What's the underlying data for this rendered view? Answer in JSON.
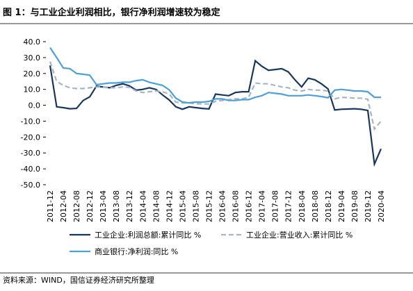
{
  "chart_data": {
    "type": "line",
    "title": "图 1：与工业企业利润相比，银行净利润增速较为稳定",
    "source": "资料来源：WIND，国信证券经济研究所整理",
    "categories": [
      "2011-12",
      null,
      "2012-04",
      null,
      "2012-08",
      null,
      "2012-12",
      null,
      "2013-04",
      null,
      "2013-08",
      null,
      "2013-12",
      null,
      "2014-04",
      null,
      "2014-08",
      null,
      "2014-12",
      null,
      "2015-04",
      null,
      "2015-08",
      null,
      "2015-12",
      null,
      "2016-04",
      null,
      "2016-08",
      null,
      "2016-12",
      null,
      "2017-04",
      null,
      "2017-08",
      null,
      "2017-12",
      null,
      "2018-04",
      null,
      "2018-08",
      null,
      "2018-12",
      null,
      "2019-04",
      null,
      "2019-08",
      null,
      "2019-12",
      null,
      "2020-04"
    ],
    "series": [
      {
        "name": "工业企业:利润总额:累计同比 %",
        "color": "#17375e",
        "dash": false,
        "values": [
          25,
          -1.0,
          -1.5,
          -2.2,
          -2.0,
          3,
          5.3,
          12,
          11.5,
          11,
          12.5,
          13.5,
          12.2,
          9.5,
          10,
          11,
          10,
          6.5,
          3.3,
          -1,
          -2.5,
          -1,
          -1.5,
          -2,
          -2.3,
          7.0,
          6.5,
          6,
          8,
          8.5,
          8.5,
          28,
          24.5,
          22,
          22.5,
          23,
          21,
          16,
          11.5,
          17,
          16,
          13.5,
          10.3,
          -3,
          -2.5,
          -2.4,
          -2.2,
          -2.5,
          -3.3,
          -37,
          -27.4
        ]
      },
      {
        "name": "工业企业:营业收入:累计同比 %",
        "color": "#a6b4c8",
        "dash": true,
        "values": [
          27.5,
          15,
          12.5,
          11,
          10.5,
          10.5,
          11,
          11.5,
          11.5,
          11,
          11,
          11.5,
          11.3,
          9,
          8,
          8.5,
          9,
          8.5,
          7,
          2,
          1.5,
          1.5,
          1,
          0.8,
          0.8,
          2.5,
          3,
          3.5,
          4,
          4,
          5,
          14,
          13.5,
          13.5,
          12.5,
          11.5,
          11,
          9.5,
          9,
          10,
          9.5,
          9.5,
          9,
          4,
          5,
          4.8,
          4.5,
          4.5,
          3.8,
          -15,
          -10
        ]
      },
      {
        "name": "商业银行:净利润:同比 %",
        "color": "#4a9fdc",
        "dash": false,
        "values": [
          36.3,
          30,
          23.5,
          23,
          20,
          19.5,
          18.9,
          13,
          13.5,
          14,
          14,
          14.5,
          14.5,
          15.5,
          16,
          14.5,
          13.5,
          12.5,
          9.7,
          4.5,
          2,
          1.5,
          2,
          2,
          2.4,
          4,
          4,
          3,
          3,
          3.5,
          3.5,
          5,
          6,
          8,
          7.5,
          7,
          6,
          6,
          6,
          6.5,
          6,
          5.5,
          4.7,
          9.5,
          10,
          9.5,
          9,
          9,
          8.5,
          5,
          5
        ]
      }
    ],
    "ylim": [
      -50,
      40
    ],
    "yticks": [
      {
        "value": 40,
        "label": "40.0"
      },
      {
        "value": 30,
        "label": "30.0"
      },
      {
        "value": 20,
        "label": "20.0"
      },
      {
        "value": 10,
        "label": "10.0"
      },
      {
        "value": 0,
        "label": "0.0"
      },
      {
        "value": -10,
        "label": "-10.0"
      },
      {
        "value": -20,
        "label": "-20.0"
      },
      {
        "value": -30,
        "label": "-30.0"
      },
      {
        "value": -40,
        "label": "-40.0"
      },
      {
        "value": -50,
        "label": "-50.0"
      }
    ],
    "grid": false
  }
}
